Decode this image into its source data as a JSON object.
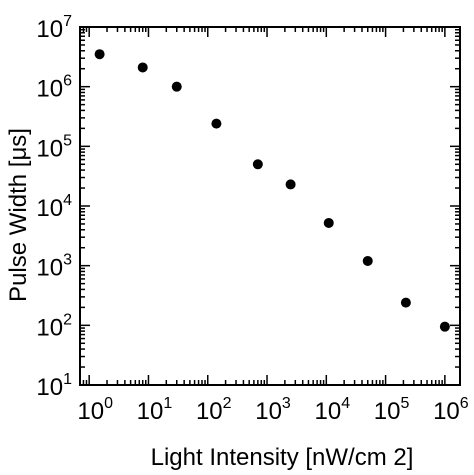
{
  "chart_data": {
    "type": "scatter",
    "title": "",
    "xlabel": "Light Intensity [nW/cm 2]",
    "ylabel": "Pulse Width [μs]",
    "x_scale": "log",
    "y_scale": "log",
    "xlim": [
      0.7,
      1800000
    ],
    "ylim": [
      10,
      10000000
    ],
    "grid": false,
    "legend": "none",
    "marker_color": "#000000",
    "x_ticks": [
      {
        "base": "10",
        "exp": "0",
        "value": 1
      },
      {
        "base": "10",
        "exp": "1",
        "value": 10
      },
      {
        "base": "10",
        "exp": "2",
        "value": 100
      },
      {
        "base": "10",
        "exp": "3",
        "value": 1000
      },
      {
        "base": "10",
        "exp": "4",
        "value": 10000
      },
      {
        "base": "10",
        "exp": "5",
        "value": 100000
      },
      {
        "base": "10",
        "exp": "6",
        "value": 1000000
      }
    ],
    "y_ticks": [
      {
        "base": "10",
        "exp": "1",
        "value": 10
      },
      {
        "base": "10",
        "exp": "2",
        "value": 100
      },
      {
        "base": "10",
        "exp": "3",
        "value": 1000
      },
      {
        "base": "10",
        "exp": "4",
        "value": 10000
      },
      {
        "base": "10",
        "exp": "5",
        "value": 100000
      },
      {
        "base": "10",
        "exp": "6",
        "value": 1000000
      },
      {
        "base": "10",
        "exp": "7",
        "value": 10000000
      }
    ],
    "points": [
      {
        "x": 1.5,
        "y": 3500000
      },
      {
        "x": 8,
        "y": 2100000
      },
      {
        "x": 30,
        "y": 1000000
      },
      {
        "x": 140,
        "y": 240000
      },
      {
        "x": 700,
        "y": 50000
      },
      {
        "x": 2500,
        "y": 23000
      },
      {
        "x": 11000,
        "y": 5200
      },
      {
        "x": 50000,
        "y": 1200
      },
      {
        "x": 220000,
        "y": 240
      },
      {
        "x": 1000000,
        "y": 95
      }
    ]
  }
}
